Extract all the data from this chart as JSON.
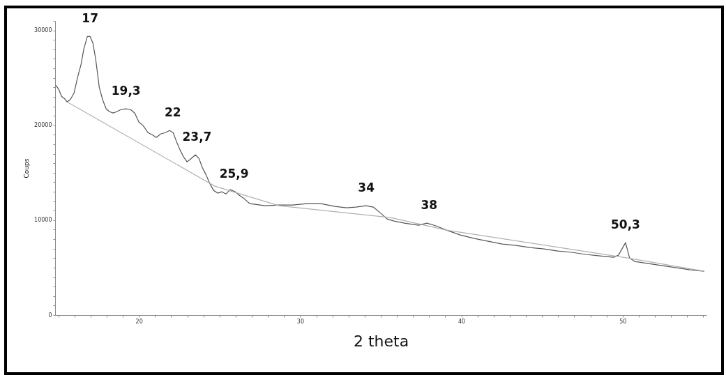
{
  "chart_data": {
    "type": "line",
    "xlabel": "2 theta",
    "ylabel": "Coups",
    "xlim": [
      14.8,
      55.2
    ],
    "ylim": [
      0,
      31000
    ],
    "xticks": [
      {
        "value": 15,
        "label": null
      },
      {
        "value": 16,
        "label": null
      },
      {
        "value": 17,
        "label": null
      },
      {
        "value": 18,
        "label": null
      },
      {
        "value": 19,
        "label": null
      },
      20,
      {
        "value": 21,
        "label": null
      },
      {
        "value": 22,
        "label": null
      },
      {
        "value": 23,
        "label": null
      },
      {
        "value": 24,
        "label": null
      },
      {
        "value": 25,
        "label": null
      },
      {
        "value": 26,
        "label": null
      },
      {
        "value": 27,
        "label": null
      },
      {
        "value": 28,
        "label": null
      },
      {
        "value": 29,
        "label": null
      },
      30,
      {
        "value": 31,
        "label": null
      },
      {
        "value": 32,
        "label": null
      },
      {
        "value": 33,
        "label": null
      },
      {
        "value": 34,
        "label": null
      },
      {
        "value": 35,
        "label": null
      },
      {
        "value": 36,
        "label": null
      },
      {
        "value": 37,
        "label": null
      },
      {
        "value": 38,
        "label": null
      },
      {
        "value": 39,
        "label": null
      },
      40,
      {
        "value": 41,
        "label": null
      },
      {
        "value": 42,
        "label": null
      },
      {
        "value": 43,
        "label": null
      },
      {
        "value": 44,
        "label": null
      },
      {
        "value": 45,
        "label": null
      },
      {
        "value": 46,
        "label": null
      },
      {
        "value": 47,
        "label": null
      },
      {
        "value": 48,
        "label": null
      },
      {
        "value": 49,
        "label": null
      },
      50,
      {
        "value": 51,
        "label": null
      },
      {
        "value": 52,
        "label": null
      },
      {
        "value": 53,
        "label": null
      },
      {
        "value": 54,
        "label": null
      },
      {
        "value": 55,
        "label": null
      }
    ],
    "yticks": [
      0,
      {
        "value": 1000,
        "label": null
      },
      {
        "value": 2000,
        "label": null
      },
      {
        "value": 3000,
        "label": null
      },
      {
        "value": 4000,
        "label": null
      },
      {
        "value": 5000,
        "label": null
      },
      {
        "value": 6000,
        "label": null
      },
      {
        "value": 7000,
        "label": null
      },
      {
        "value": 8000,
        "label": null
      },
      {
        "value": 9000,
        "label": null
      },
      10000,
      {
        "value": 11000,
        "label": null
      },
      {
        "value": 12000,
        "label": null
      },
      {
        "value": 13000,
        "label": null
      },
      {
        "value": 14000,
        "label": null
      },
      {
        "value": 15000,
        "label": null
      },
      {
        "value": 16000,
        "label": null
      },
      {
        "value": 17000,
        "label": null
      },
      {
        "value": 18000,
        "label": null
      },
      {
        "value": 19000,
        "label": null
      },
      20000,
      {
        "value": 21000,
        "label": null
      },
      {
        "value": 22000,
        "label": null
      },
      {
        "value": 23000,
        "label": null
      },
      {
        "value": 24000,
        "label": null
      },
      {
        "value": 25000,
        "label": null
      },
      {
        "value": 26000,
        "label": null
      },
      {
        "value": 27000,
        "label": null
      },
      {
        "value": 28000,
        "label": null
      },
      {
        "value": 29000,
        "label": null
      },
      30000,
      {
        "value": 31000,
        "label": null
      }
    ],
    "series": [
      {
        "color": "#555555",
        "x": [
          14.85,
          15.03,
          15.2,
          15.37,
          15.55,
          15.76,
          15.98,
          16.2,
          16.41,
          16.58,
          16.8,
          16.97,
          17.15,
          17.32,
          17.54,
          17.75,
          17.97,
          18.18,
          18.4,
          18.62,
          18.88,
          19.18,
          19.48,
          19.74,
          20,
          20.26,
          20.56,
          20.82,
          21.08,
          21.34,
          21.64,
          21.9,
          22.12,
          22.33,
          22.55,
          22.77,
          22.98,
          23.2,
          23.5,
          23.72,
          23.93,
          24.15,
          24.37,
          24.63,
          24.89,
          25.14,
          25.4,
          25.66,
          25.97,
          26.23,
          26.53,
          26.88,
          27.83,
          28.69,
          29.55,
          30.42,
          31.28,
          32.15,
          32.88,
          33.45,
          34.09,
          34.53,
          34.96,
          35.39,
          35.82,
          36.47,
          37.34,
          37.86,
          38.42,
          39.07,
          39.93,
          40.8,
          41.66,
          42.53,
          43.39,
          44.25,
          45.12,
          45.98,
          46.85,
          47.71,
          48.58,
          49.44,
          49.74,
          50.18,
          50.43,
          50.74,
          51.6,
          52.47,
          53.33,
          54.2,
          55.06
        ],
        "values": [
          24220,
          23780,
          23050,
          22830,
          22460,
          22750,
          23410,
          25100,
          26420,
          28040,
          29360,
          29360,
          28630,
          26940,
          24000,
          22680,
          21730,
          21430,
          21290,
          21430,
          21650,
          21730,
          21650,
          21290,
          20330,
          19970,
          19230,
          19010,
          18720,
          19080,
          19230,
          19450,
          19230,
          18280,
          17400,
          16660,
          16150,
          16440,
          16880,
          16520,
          15560,
          14830,
          13950,
          13140,
          12850,
          12990,
          12770,
          13210,
          12990,
          12620,
          12260,
          11740,
          11520,
          11600,
          11600,
          11740,
          11740,
          11450,
          11300,
          11380,
          11520,
          11380,
          10790,
          10130,
          9910,
          9690,
          9470,
          9690,
          9400,
          8950,
          8440,
          8070,
          7780,
          7490,
          7340,
          7120,
          6970,
          6750,
          6610,
          6390,
          6240,
          6090,
          6310,
          7630,
          6020,
          5650,
          5430,
          5210,
          4990,
          4770,
          4620
        ]
      },
      {
        "color": "#b0b0b0",
        "x": [
          15.55,
          24.71,
          28.69,
          35.6,
          39.07,
          50.31,
          55.06
        ],
        "values": [
          22460,
          13580,
          11520,
          10280,
          8950,
          6020,
          4620
        ]
      }
    ],
    "annotations": [
      {
        "text": "17",
        "x": 16.97,
        "y": 29360
      },
      {
        "text": "19,3",
        "x": 19.2,
        "y": 21730
      },
      {
        "text": "22",
        "x": 22.1,
        "y": 19450
      },
      {
        "text": "23,7",
        "x": 23.6,
        "y": 16880
      },
      {
        "text": "25,9",
        "x": 25.9,
        "y": 13000
      },
      {
        "text": "34",
        "x": 34.1,
        "y": 11520
      },
      {
        "text": "38",
        "x": 38,
        "y": 9690
      },
      {
        "text": "50,3",
        "x": 50.18,
        "y": 7630
      }
    ]
  }
}
